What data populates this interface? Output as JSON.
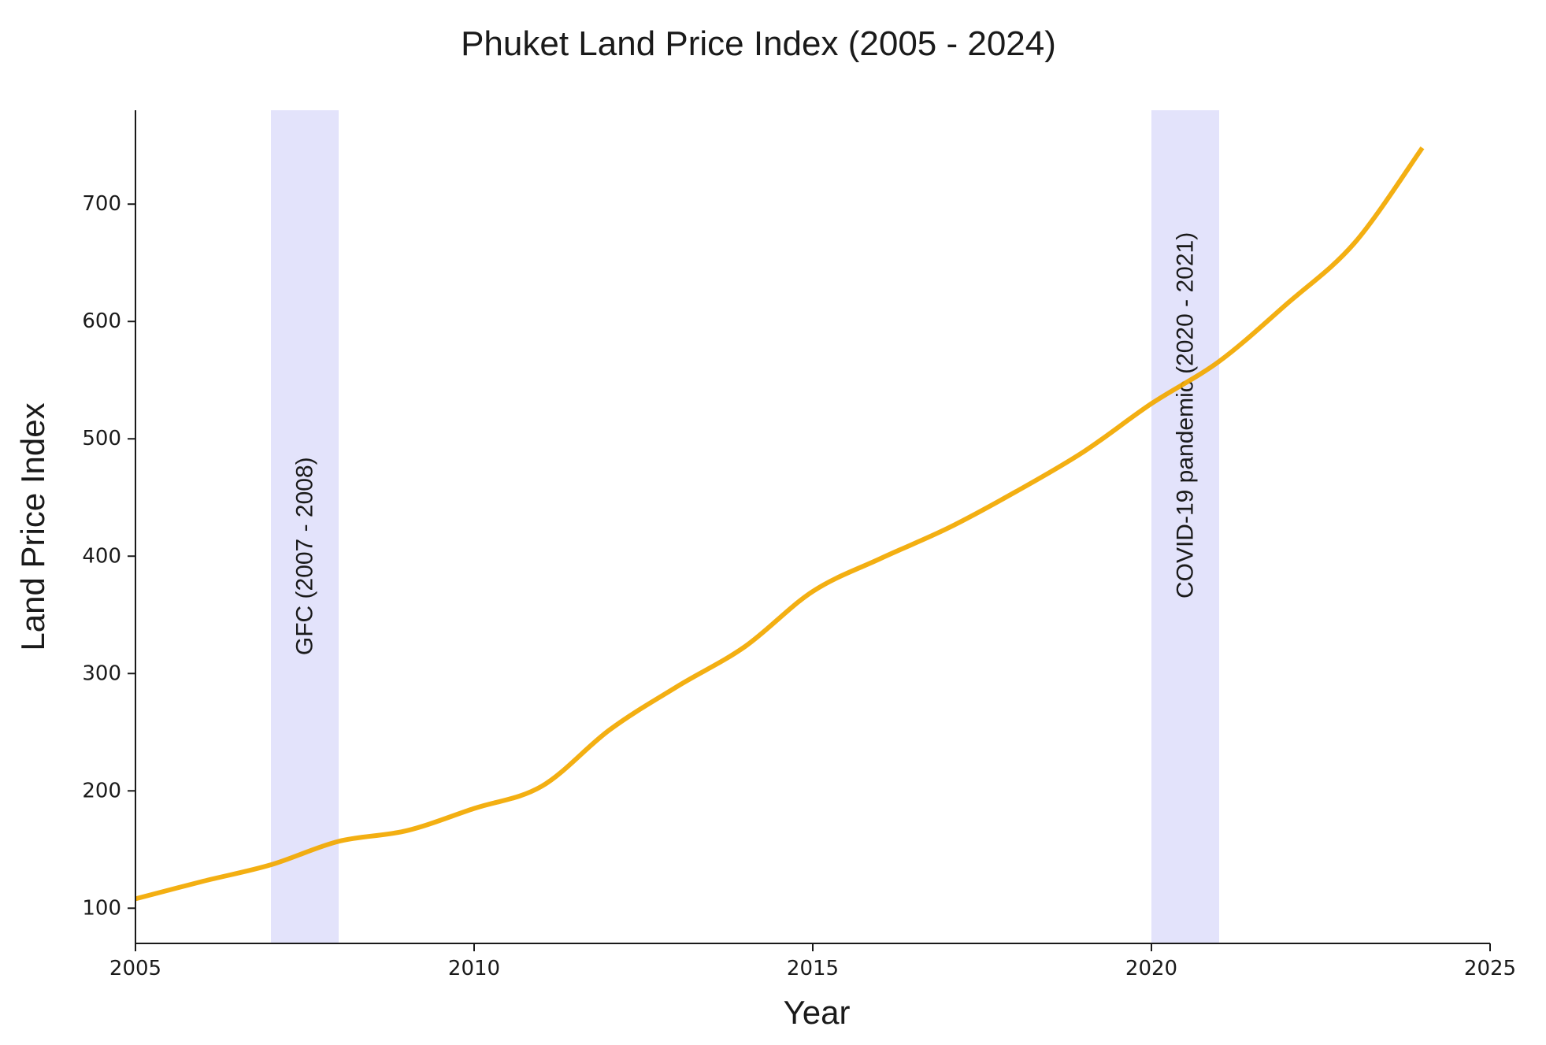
{
  "chart_data": {
    "type": "line",
    "title": "Phuket Land Price Index  (2005 - 2024)",
    "xlabel": "Year",
    "ylabel": "Land Price Index",
    "xlim": [
      2005,
      2025
    ],
    "ylim": [
      70,
      780
    ],
    "x_ticks": [
      2005,
      2010,
      2015,
      2020,
      2025
    ],
    "y_ticks": [
      100,
      200,
      300,
      400,
      500,
      600,
      700
    ],
    "grid": false,
    "legend": "none",
    "line_color": "#f2a900",
    "series": [
      {
        "x": [
          2005,
          2006,
          2007,
          2008,
          2009,
          2010,
          2011,
          2012,
          2013,
          2014,
          2015,
          2016,
          2017,
          2018,
          2019,
          2020,
          2021,
          2022,
          2023,
          2024
        ],
        "y": [
          108,
          123,
          137,
          157,
          166,
          185,
          204,
          252,
          289,
          323,
          370,
          398,
          424,
          455,
          489,
          530,
          566,
          615,
          667,
          748
        ]
      }
    ],
    "shaded_regions": [
      {
        "start": 2007,
        "end": 2008,
        "label": "GFC (2007 - 2008)",
        "color": "#e3e3fb",
        "label_y": 400
      },
      {
        "start": 2020,
        "end": 2021,
        "label": "COVID-19 pandemic (2020 - 2021)",
        "color": "#e3e3fb",
        "label_y": 520
      }
    ]
  }
}
